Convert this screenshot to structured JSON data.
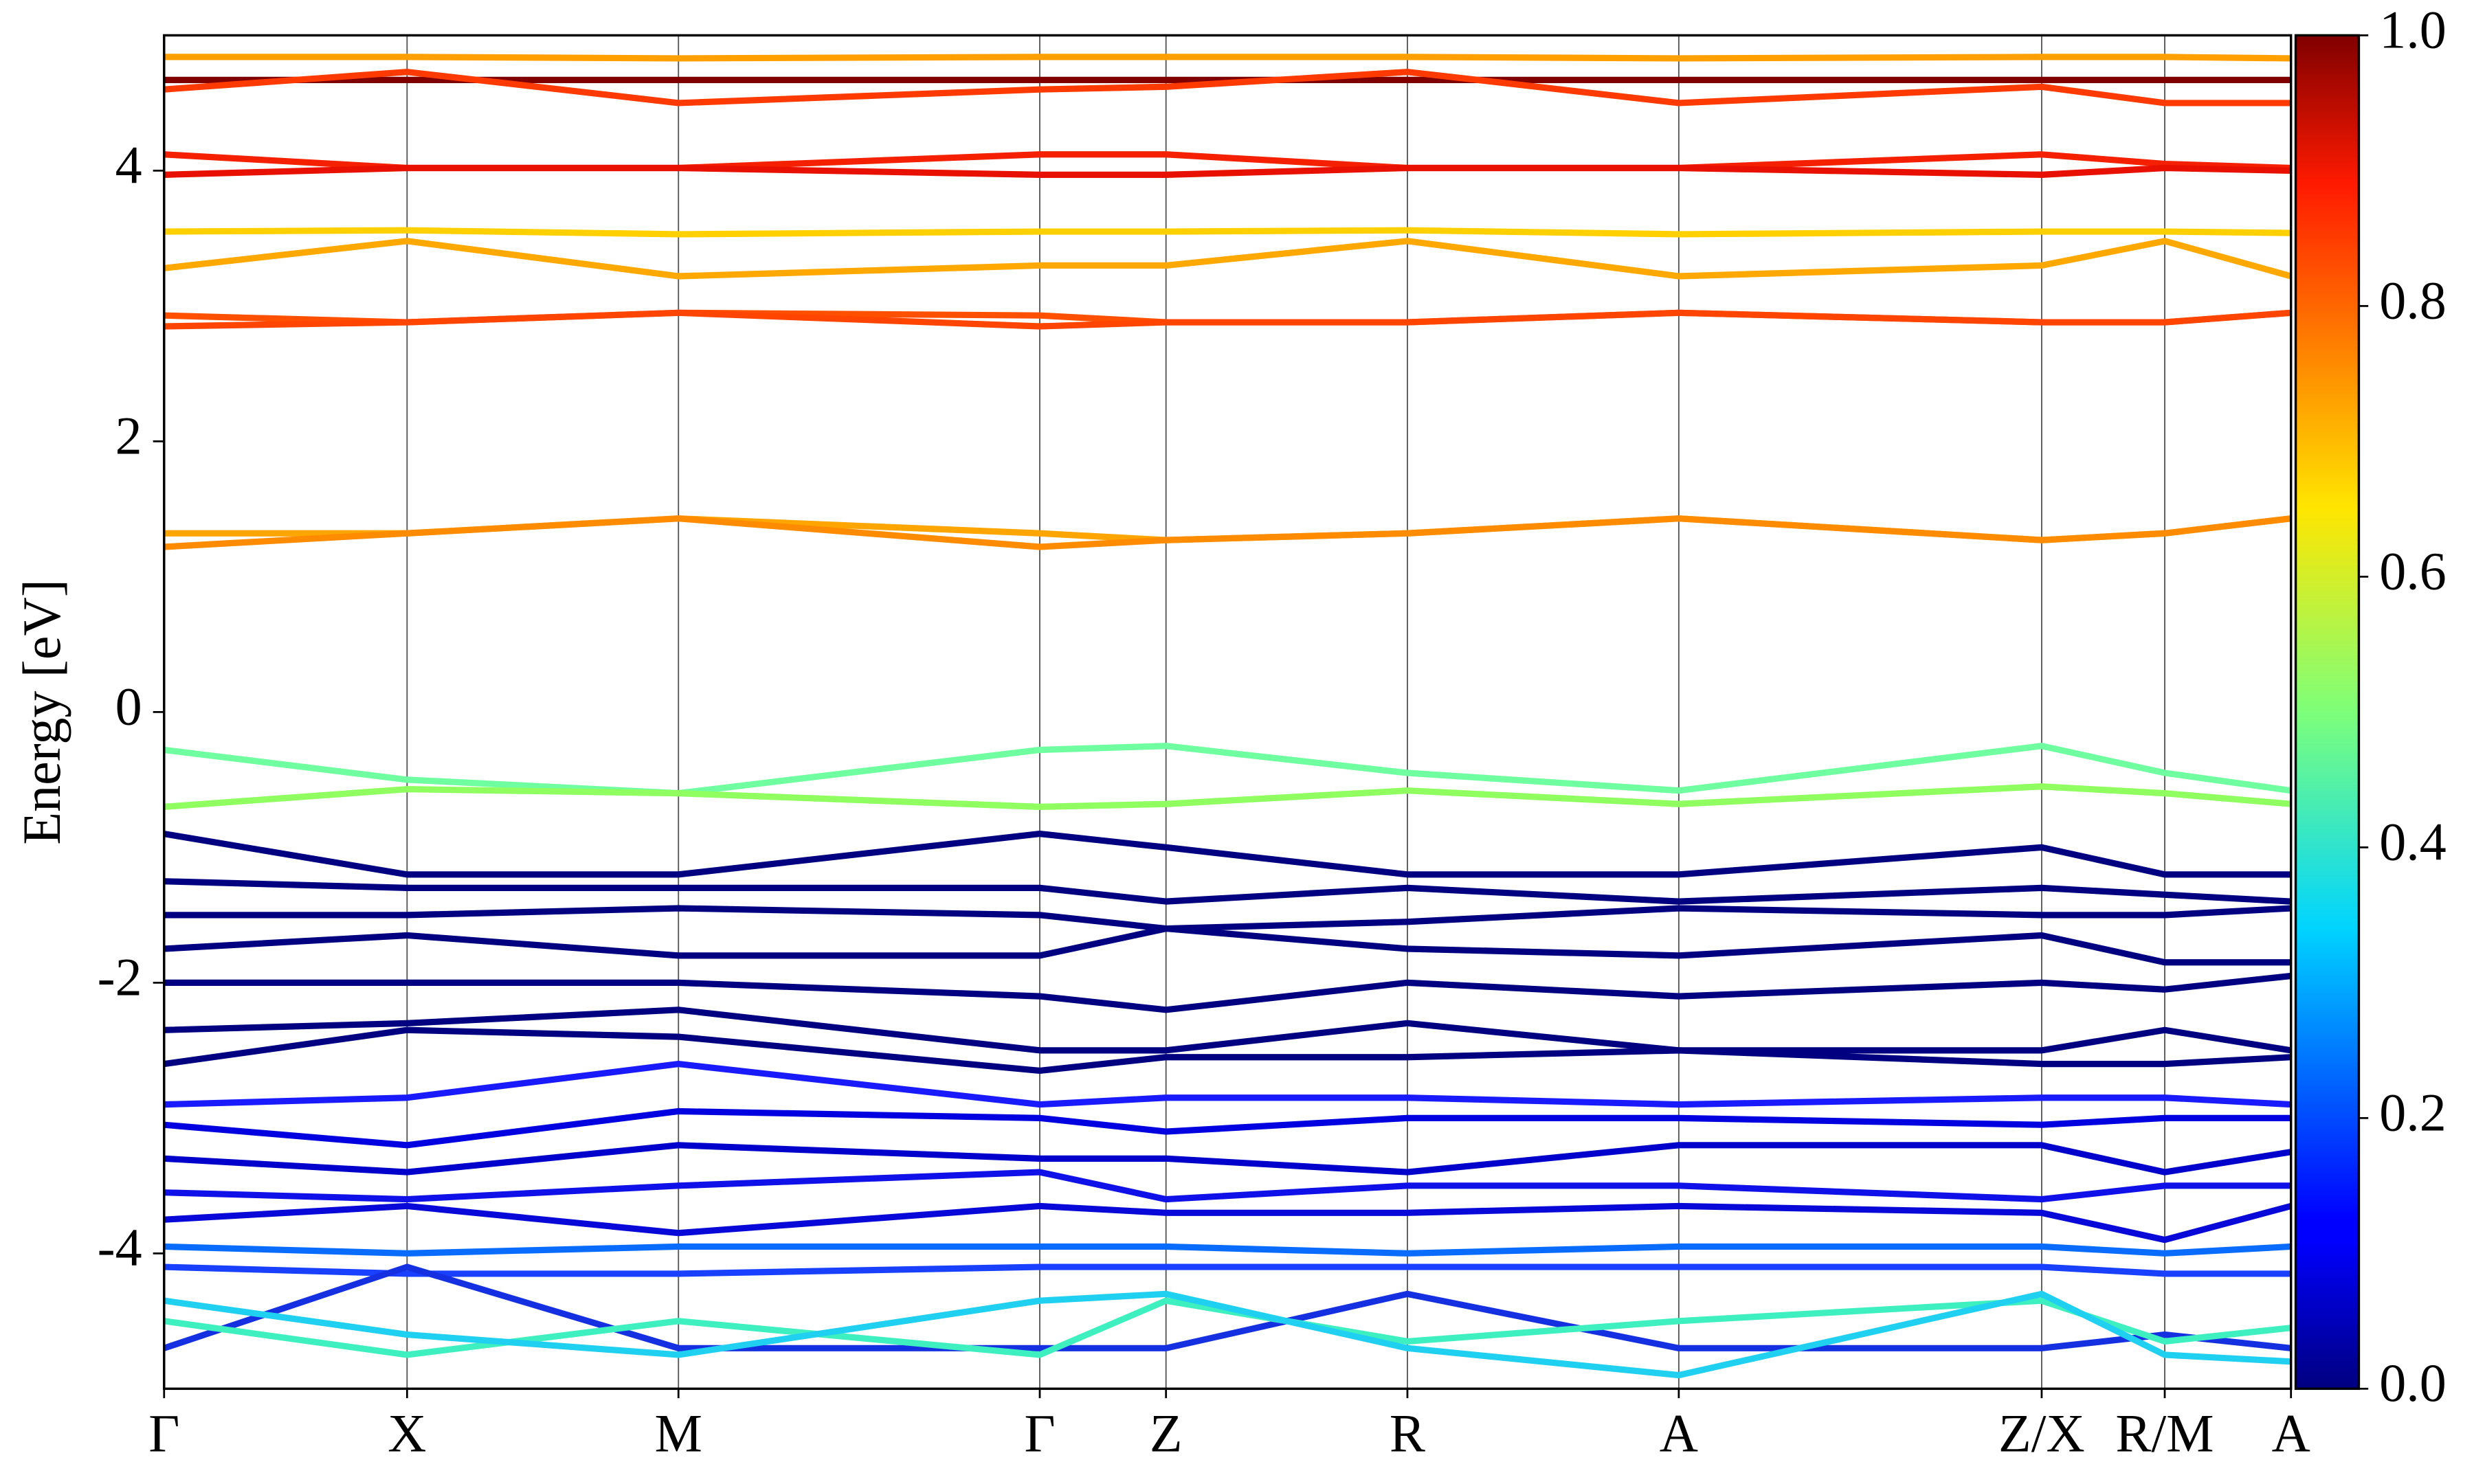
{
  "chart_data": {
    "type": "line",
    "ylabel": "Energy [eV]",
    "x": [
      0,
      1.54,
      3.26,
      5.55,
      6.35,
      7.88,
      9.6,
      11.9,
      12.68,
      13.48
    ],
    "xlim": [
      0,
      13.48
    ],
    "xticks": [
      {
        "value": 0,
        "label": "Γ"
      },
      {
        "value": 1.54,
        "label": "X"
      },
      {
        "value": 3.26,
        "label": "M"
      },
      {
        "value": 5.55,
        "label": "Γ"
      },
      {
        "value": 6.35,
        "label": "Z"
      },
      {
        "value": 7.88,
        "label": "R"
      },
      {
        "value": 9.6,
        "label": "A"
      },
      {
        "value": 11.9,
        "label": "Z/X"
      },
      {
        "value": 12.68,
        "label": "R/M"
      },
      {
        "value": 13.48,
        "label": "A"
      }
    ],
    "ylim": [
      -5,
      5
    ],
    "yticks": [
      -4,
      -2,
      0,
      2,
      4
    ],
    "grid": "x",
    "colorbar": {
      "lim": [
        0,
        1
      ],
      "ticks": [
        {
          "value": 0,
          "label": "0.0"
        },
        {
          "value": 0.2,
          "label": "0.2"
        },
        {
          "value": 0.4,
          "label": "0.4"
        },
        {
          "value": 0.6,
          "label": "0.6"
        },
        {
          "value": 0.8,
          "label": "0.8"
        },
        {
          "value": 1,
          "label": "1.0"
        }
      ]
    },
    "series": [
      {
        "color": "#ffa000",
        "values": [
          4.84,
          4.84,
          4.83,
          4.84,
          4.84,
          4.84,
          4.83,
          4.84,
          4.84,
          4.83
        ]
      },
      {
        "color": "#800000",
        "values": [
          4.67,
          4.67,
          4.67,
          4.67,
          4.67,
          4.67,
          4.67,
          4.67,
          4.67,
          4.67
        ]
      },
      {
        "color": "#ff3a00",
        "values": [
          4.6,
          4.73,
          4.5,
          4.6,
          4.62,
          4.73,
          4.5,
          4.62,
          4.5,
          4.5
        ]
      },
      {
        "color": "#f52000",
        "values": [
          4.12,
          4.02,
          4.02,
          4.12,
          4.12,
          4.02,
          4.02,
          4.12,
          4.05,
          4.02
        ]
      },
      {
        "color": "#e81000",
        "values": [
          3.97,
          4.02,
          4.02,
          3.97,
          3.97,
          4.02,
          4.02,
          3.97,
          4.02,
          4.0
        ]
      },
      {
        "color": "#ffd000",
        "values": [
          3.55,
          3.56,
          3.53,
          3.55,
          3.55,
          3.56,
          3.53,
          3.55,
          3.55,
          3.54
        ]
      },
      {
        "color": "#ffa800",
        "values": [
          3.28,
          3.48,
          3.22,
          3.3,
          3.3,
          3.48,
          3.22,
          3.3,
          3.48,
          3.22
        ]
      },
      {
        "color": "#ff5000",
        "values": [
          2.93,
          2.88,
          2.95,
          2.93,
          2.88,
          2.88,
          2.95,
          2.88,
          2.88,
          2.95
        ]
      },
      {
        "color": "#ff4500",
        "values": [
          2.85,
          2.88,
          2.95,
          2.85,
          2.88,
          2.88,
          2.95,
          2.88,
          2.88,
          2.95
        ]
      },
      {
        "color": "#ffa500",
        "values": [
          1.32,
          1.32,
          1.43,
          1.32,
          1.27,
          1.32,
          1.43,
          1.27,
          1.32,
          1.43
        ]
      },
      {
        "color": "#ff8c00",
        "values": [
          1.22,
          1.32,
          1.43,
          1.22,
          1.27,
          1.32,
          1.43,
          1.27,
          1.32,
          1.43
        ]
      },
      {
        "color": "#70ffa0",
        "values": [
          -0.28,
          -0.5,
          -0.6,
          -0.28,
          -0.25,
          -0.45,
          -0.58,
          -0.25,
          -0.45,
          -0.58
        ]
      },
      {
        "color": "#90ff60",
        "values": [
          -0.7,
          -0.57,
          -0.6,
          -0.7,
          -0.68,
          -0.58,
          -0.68,
          -0.55,
          -0.6,
          -0.68
        ]
      },
      {
        "color": "#000080",
        "values": [
          -0.9,
          -1.2,
          -1.2,
          -0.9,
          -1.0,
          -1.2,
          -1.2,
          -1.0,
          -1.2,
          -1.2
        ]
      },
      {
        "color": "#000080",
        "values": [
          -1.25,
          -1.3,
          -1.3,
          -1.3,
          -1.4,
          -1.3,
          -1.4,
          -1.3,
          -1.35,
          -1.4
        ]
      },
      {
        "color": "#000080",
        "values": [
          -1.5,
          -1.5,
          -1.45,
          -1.5,
          -1.6,
          -1.55,
          -1.45,
          -1.5,
          -1.5,
          -1.45
        ]
      },
      {
        "color": "#000080",
        "values": [
          -1.75,
          -1.65,
          -1.8,
          -1.8,
          -1.6,
          -1.75,
          -1.8,
          -1.65,
          -1.85,
          -1.85
        ]
      },
      {
        "color": "#000080",
        "values": [
          -2.0,
          -2.0,
          -2.0,
          -2.1,
          -2.2,
          -2.0,
          -2.1,
          -2.0,
          -2.05,
          -1.95
        ]
      },
      {
        "color": "#000080",
        "values": [
          -2.35,
          -2.3,
          -2.2,
          -2.5,
          -2.5,
          -2.3,
          -2.5,
          -2.5,
          -2.35,
          -2.5
        ]
      },
      {
        "color": "#000080",
        "values": [
          -2.6,
          -2.35,
          -2.4,
          -2.65,
          -2.55,
          -2.55,
          -2.5,
          -2.6,
          -2.6,
          -2.55
        ]
      },
      {
        "color": "#1a1aff",
        "values": [
          -2.9,
          -2.85,
          -2.6,
          -2.9,
          -2.85,
          -2.85,
          -2.9,
          -2.85,
          -2.85,
          -2.9
        ]
      },
      {
        "color": "#0000e0",
        "values": [
          -3.05,
          -3.2,
          -2.95,
          -3.0,
          -3.1,
          -3.0,
          -3.0,
          -3.05,
          -3.0,
          -3.0
        ]
      },
      {
        "color": "#0000cc",
        "values": [
          -3.3,
          -3.4,
          -3.2,
          -3.3,
          -3.3,
          -3.4,
          -3.2,
          -3.2,
          -3.4,
          -3.25
        ]
      },
      {
        "color": "#1010e8",
        "values": [
          -3.55,
          -3.6,
          -3.5,
          -3.4,
          -3.6,
          -3.5,
          -3.5,
          -3.6,
          -3.5,
          -3.5
        ]
      },
      {
        "color": "#0808d8",
        "values": [
          -3.75,
          -3.65,
          -3.85,
          -3.65,
          -3.7,
          -3.7,
          -3.65,
          -3.7,
          -3.9,
          -3.65
        ]
      },
      {
        "color": "#0a6cff",
        "values": [
          -3.95,
          -4.0,
          -3.95,
          -3.95,
          -3.95,
          -4.0,
          -3.95,
          -3.95,
          -4.0,
          -3.95
        ]
      },
      {
        "color": "#1a40ff",
        "values": [
          -4.1,
          -4.15,
          -4.15,
          -4.1,
          -4.1,
          -4.1,
          -4.1,
          -4.1,
          -4.15,
          -4.15
        ]
      },
      {
        "color": "#1530e0",
        "values": [
          -4.7,
          -4.1,
          -4.7,
          -4.7,
          -4.7,
          -4.3,
          -4.7,
          -4.7,
          -4.6,
          -4.7
        ]
      },
      {
        "color": "#3ef0c0",
        "values": [
          -4.5,
          -4.75,
          -4.5,
          -4.75,
          -4.35,
          -4.65,
          -4.5,
          -4.35,
          -4.65,
          -4.55
        ]
      },
      {
        "color": "#20d0f0",
        "values": [
          -4.35,
          -4.6,
          -4.75,
          -4.35,
          -4.3,
          -4.7,
          -4.9,
          -4.3,
          -4.75,
          -4.8
        ]
      }
    ]
  }
}
